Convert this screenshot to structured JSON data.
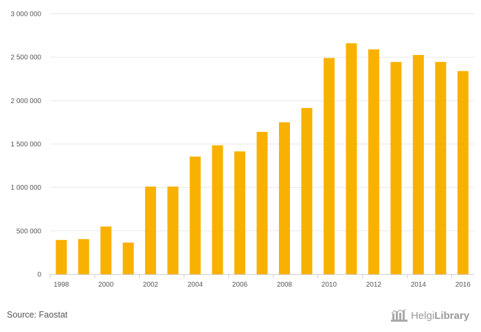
{
  "chart_data": {
    "type": "bar",
    "categories": [
      "1998",
      "1999",
      "2000",
      "2001",
      "2002",
      "2003",
      "2004",
      "2005",
      "2006",
      "2007",
      "2008",
      "2009",
      "2010",
      "2011",
      "2012",
      "2013",
      "2014",
      "2015",
      "2016"
    ],
    "values": [
      395000,
      405000,
      550000,
      365000,
      1010000,
      1010000,
      1355000,
      1485000,
      1415000,
      1640000,
      1750000,
      1915000,
      2490000,
      2660000,
      2590000,
      2445000,
      2525000,
      2445000,
      2340000
    ],
    "xtick_labels": [
      "1998",
      "2000",
      "2002",
      "2004",
      "2006",
      "2008",
      "2010",
      "2012",
      "2014",
      "2016"
    ],
    "yticks": [
      0,
      500000,
      1000000,
      1500000,
      2000000,
      2500000,
      3000000
    ],
    "ytick_labels": [
      "0",
      "500 000",
      "1 000 000",
      "1 500 000",
      "2 000 000",
      "2 500 000",
      "3 000 000"
    ],
    "ylim": [
      0,
      3000000
    ],
    "grid": true,
    "bar_color": "#F9B100"
  },
  "footer": {
    "source": "Source: Faostat",
    "logo_text_light": "Helgi",
    "logo_text_bold": "Library",
    "logo_icon": "library-building-icon"
  }
}
